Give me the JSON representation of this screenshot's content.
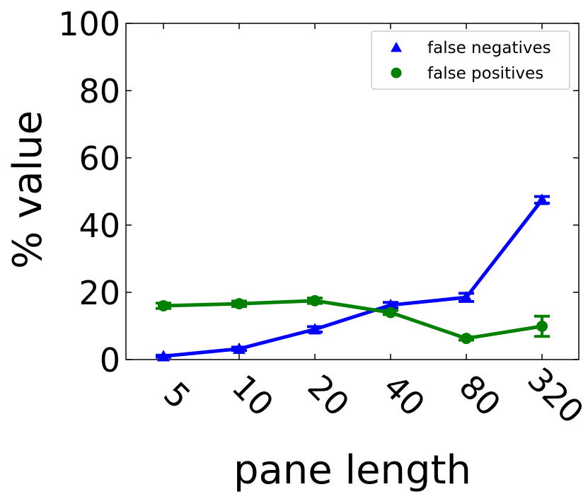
{
  "chart_data": {
    "type": "line",
    "title": "",
    "xlabel": "pane length",
    "ylabel": "% value",
    "categories": [
      "5",
      "10",
      "20",
      "40",
      "80",
      "320"
    ],
    "ylim": [
      0,
      100
    ],
    "yticks": [
      "0",
      "20",
      "40",
      "60",
      "80",
      "100"
    ],
    "grid": false,
    "legend_position": "top-right",
    "series": [
      {
        "name": "false negatives",
        "marker": "triangle",
        "color": "#0000ff",
        "values": [
          1.0,
          3.2,
          9.0,
          16.2,
          18.5,
          47.5
        ],
        "errors": [
          0.3,
          0.5,
          0.8,
          0.8,
          1.2,
          1.0
        ]
      },
      {
        "name": "false positives",
        "marker": "circle",
        "color": "#008000",
        "values": [
          16.0,
          16.6,
          17.5,
          14.0,
          6.3,
          9.9
        ],
        "errors": [
          0.8,
          0.8,
          0.8,
          0.6,
          0.5,
          3.0
        ]
      }
    ]
  }
}
